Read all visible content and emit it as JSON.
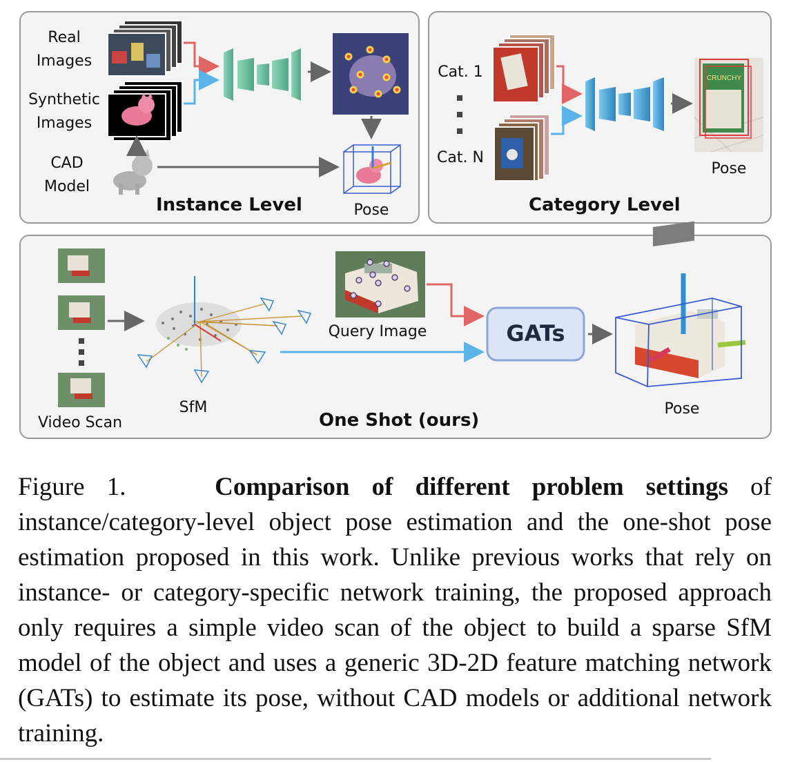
{
  "instance": {
    "real_images": "Real\nImages",
    "synthetic_images": "Synthetic\nImages",
    "cad_model": "CAD\nModel",
    "pose": "Pose",
    "title": "Instance Level"
  },
  "category": {
    "cat_first": "Cat. 1",
    "cat_last": "Cat. N",
    "pose": "Pose",
    "title": "Category Level",
    "box_text": "CRUNCHY"
  },
  "oneshot": {
    "video_scan": "Video Scan",
    "sfm": "SfM",
    "query_image": "Query Image",
    "gats": "GATs",
    "pose": "Pose",
    "title": "One Shot (ours)"
  },
  "caption": {
    "label": "Figure 1.",
    "bold": "Comparison of different problem settings",
    "text": " of instance/category-level object pose estimation and the one-shot pose estimation proposed in this work. Unlike previous works that rely on instance- or category-specific network training, the proposed approach only requires a simple video scan of the object to build a sparse SfM model of the object and uses a generic 3D-2D feature matching network (GATs) to estimate its pose, without CAD models or additional network training."
  },
  "colors": {
    "red_arrow": "#e06666",
    "blue_arrow": "#5ab4e8",
    "network_green": "#6cc0a0",
    "network_blue": "#4aa8d8",
    "bbox_blue": "#3a5bd0",
    "gats_box": "#dbe5f5"
  }
}
